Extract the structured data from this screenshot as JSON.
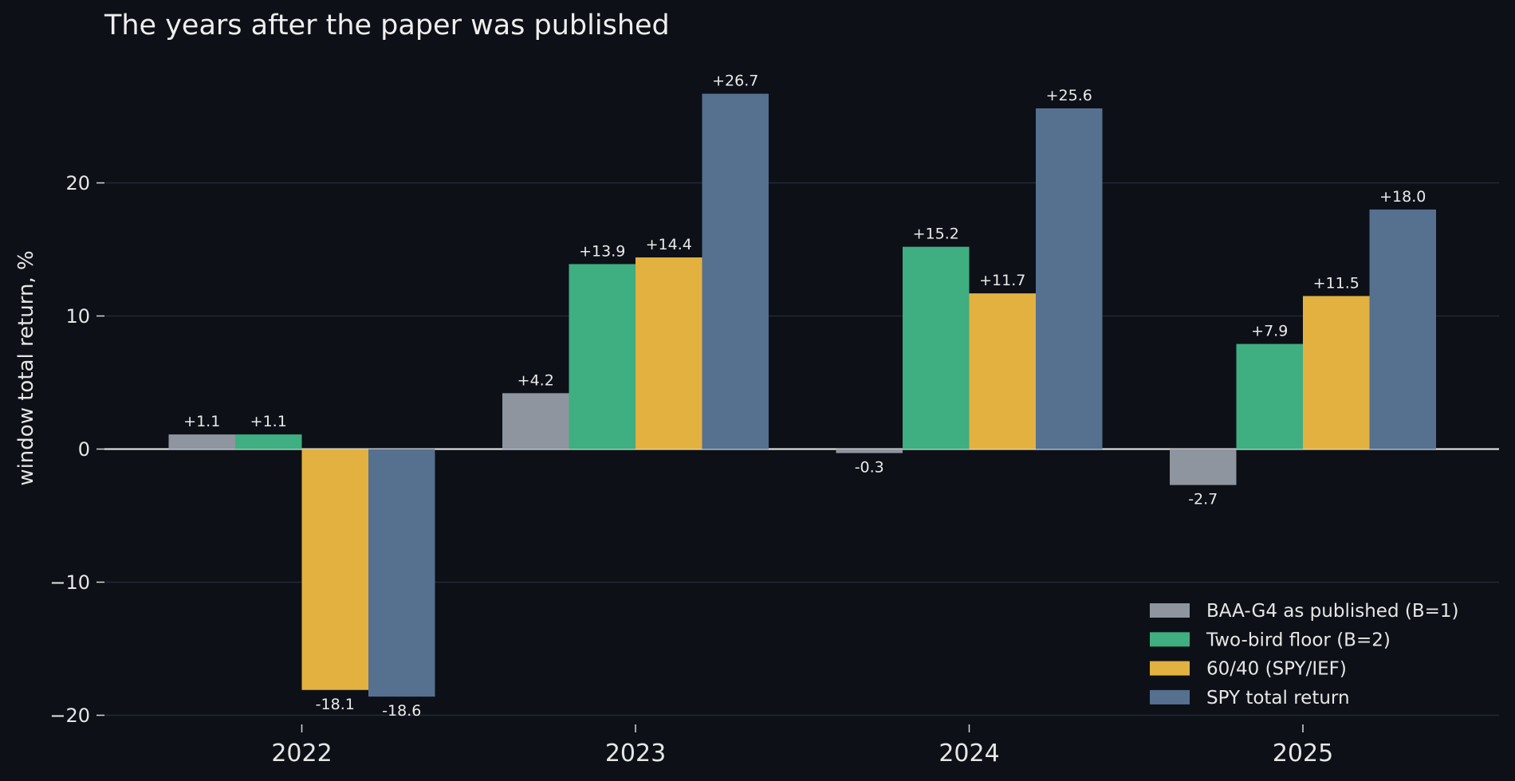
{
  "chart_data": {
    "type": "bar",
    "title": "The years after the paper was published",
    "xlabel": "",
    "ylabel": "window total return, %",
    "categories": [
      "2022",
      "2023",
      "2024",
      "2025"
    ],
    "ylim": [
      -20.5,
      28.5
    ],
    "yticks": [
      {
        "value": 20,
        "label": "20"
      },
      {
        "value": 10,
        "label": "10"
      },
      {
        "value": 0,
        "label": "0"
      },
      {
        "value": -10,
        "label": "−10"
      },
      {
        "value": -20,
        "label": "−20"
      }
    ],
    "grid": true,
    "legend_position": "bottom-right",
    "series": [
      {
        "name": "BAA-G4 as published (B=1)",
        "color": "#8e959f",
        "values": [
          1.1,
          4.2,
          -0.3,
          -2.7
        ],
        "labels": [
          "+1.1",
          "+4.2",
          "-0.3",
          "-2.7"
        ]
      },
      {
        "name": "Two-bird floor (B=2)",
        "color": "#3fae80",
        "values": [
          1.1,
          13.9,
          15.2,
          7.9
        ],
        "labels": [
          "+1.1",
          "+13.9",
          "+15.2",
          "+7.9"
        ]
      },
      {
        "name": "60/40 (SPY/IEF)",
        "color": "#e2b140",
        "values": [
          -18.1,
          14.4,
          11.7,
          11.5
        ],
        "labels": [
          "-18.1",
          "+14.4",
          "+11.7",
          "+11.5"
        ]
      },
      {
        "name": "SPY total return",
        "color": "#56708f",
        "values": [
          -18.6,
          26.7,
          25.6,
          18.0
        ],
        "labels": [
          "-18.6",
          "+26.7",
          "+25.6",
          "+18.0"
        ]
      }
    ]
  }
}
